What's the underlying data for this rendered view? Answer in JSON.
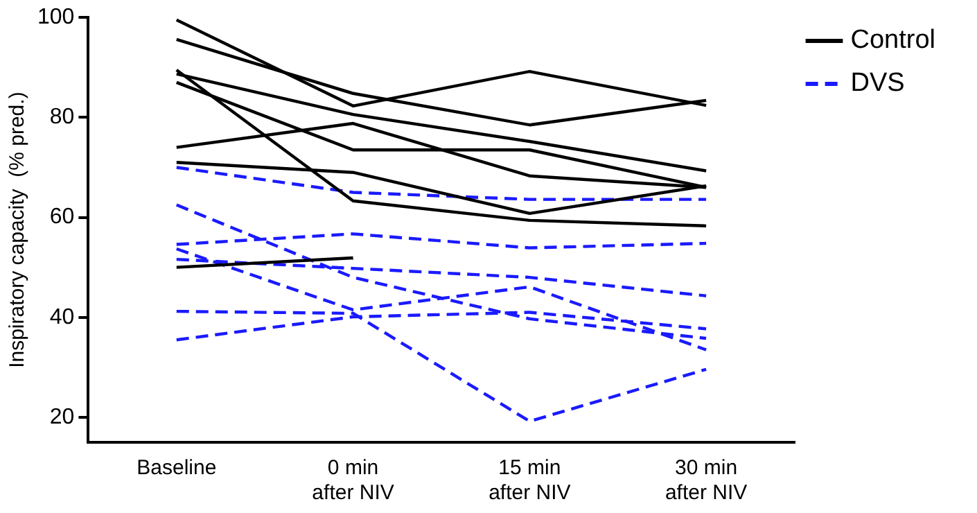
{
  "chart_data": {
    "type": "line",
    "ylabel": "Inspiratory capacity  (% pred.)",
    "categories": [
      "Baseline",
      "0 min\nafter NIV",
      "15 min\nafter NIV",
      "30 min\nafter NIV"
    ],
    "ylim": [
      15,
      100
    ],
    "yticks": [
      20,
      40,
      60,
      80,
      100
    ],
    "grid": false,
    "legend": "top right",
    "marker": "none",
    "series": [
      {
        "name": "Control",
        "color": "#000000",
        "line_style": "solid",
        "values": [
          99.5,
          82.3,
          89.2,
          82.4
        ]
      },
      {
        "color": "#000000",
        "line_style": "solid",
        "values": [
          95.6,
          84.8,
          78.5,
          83.4
        ]
      },
      {
        "color": "#000000",
        "line_style": "solid",
        "values": [
          89.5,
          63.3,
          59.4,
          58.3
        ]
      },
      {
        "color": "#000000",
        "line_style": "solid",
        "values": [
          88.7,
          80.6,
          75.2,
          69.3
        ]
      },
      {
        "color": "#000000",
        "line_style": "solid",
        "values": [
          87,
          73.5,
          73.5,
          66
        ]
      },
      {
        "color": "#000000",
        "line_style": "solid",
        "values": [
          74,
          78.8,
          68.3,
          66
        ]
      },
      {
        "color": "#000000",
        "line_style": "solid",
        "values": [
          71,
          69,
          60.8,
          66.3
        ]
      },
      {
        "color": "#000000",
        "line_style": "solid",
        "values": [
          50,
          51.9,
          null,
          null
        ]
      },
      {
        "name": "DVS",
        "color": "#1a1aff",
        "line_style": "dashed",
        "values": [
          70,
          65,
          63.6,
          63.6
        ]
      },
      {
        "color": "#1a1aff",
        "line_style": "dashed",
        "values": [
          62.5,
          48,
          39.7,
          35.8
        ]
      },
      {
        "color": "#1a1aff",
        "line_style": "dashed",
        "values": [
          54.6,
          56.7,
          53.9,
          54.8
        ]
      },
      {
        "color": "#1a1aff",
        "line_style": "dashed",
        "values": [
          53.7,
          41.5,
          46.1,
          33.5
        ]
      },
      {
        "color": "#1a1aff",
        "line_style": "dashed",
        "values": [
          51.6,
          49.8,
          48,
          44.3
        ]
      },
      {
        "color": "#1a1aff",
        "line_style": "dashed",
        "values": [
          41.2,
          40.8,
          19.2,
          29.6
        ]
      },
      {
        "color": "#1a1aff",
        "line_style": "dashed",
        "values": [
          35.5,
          40.1,
          41,
          37.7
        ]
      }
    ]
  }
}
